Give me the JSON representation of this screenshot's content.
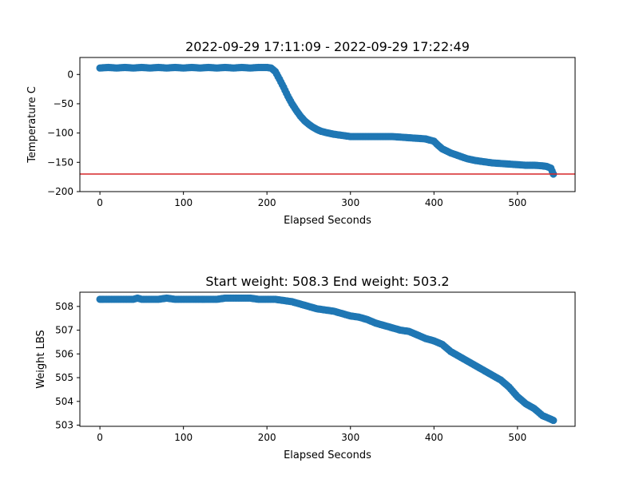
{
  "chart_data": [
    {
      "type": "scatter",
      "title": "2022-09-29 17:11:09 - 2022-09-29 17:22:49",
      "xlabel": "Elapsed Seconds",
      "ylabel": "Temperature C",
      "xlim": [
        -24,
        569
      ],
      "ylim": [
        -200,
        29
      ],
      "xticks": [
        0,
        100,
        200,
        300,
        400,
        500
      ],
      "yticks": [
        0,
        -50,
        -100,
        -150,
        -200
      ],
      "xtick_labels": [
        "0",
        "100",
        "200",
        "300",
        "400",
        "500"
      ],
      "ytick_labels": [
        "0",
        "−50",
        "−100",
        "−150",
        "−200"
      ],
      "grid": false,
      "marker_color": "#1f77b4",
      "reference_line": {
        "y": -170,
        "color": "#d62728"
      },
      "series": [
        {
          "x": [
            0,
            10,
            20,
            30,
            40,
            50,
            60,
            70,
            80,
            90,
            100,
            110,
            120,
            130,
            140,
            150,
            160,
            170,
            180,
            190,
            200,
            205,
            210,
            215,
            220,
            225,
            230,
            235,
            240,
            245,
            250,
            255,
            260,
            265,
            270,
            280,
            290,
            300,
            310,
            320,
            330,
            340,
            350,
            360,
            370,
            380,
            390,
            395,
            400,
            405,
            410,
            420,
            430,
            440,
            450,
            460,
            470,
            480,
            490,
            500,
            510,
            520,
            530,
            535,
            540,
            543
          ],
          "y": [
            11,
            12,
            11,
            12,
            11,
            12,
            11,
            12,
            11,
            12,
            11,
            12,
            11,
            12,
            11,
            12,
            11,
            12,
            11,
            12,
            12,
            11,
            5,
            -8,
            -22,
            -37,
            -50,
            -61,
            -71,
            -79,
            -85,
            -90,
            -94,
            -97,
            -99,
            -102,
            -104,
            -106,
            -106,
            -106,
            -106,
            -106,
            -106,
            -107,
            -108,
            -109,
            -110,
            -112,
            -114,
            -121,
            -127,
            -134,
            -139,
            -144,
            -147,
            -149,
            -151,
            -152,
            -153,
            -154,
            -155,
            -155,
            -156,
            -157,
            -160,
            -170
          ]
        }
      ]
    },
    {
      "type": "scatter",
      "title": "Start weight: 508.3 End weight: 503.2",
      "xlabel": "Elapsed Seconds",
      "ylabel": "Weight LBS",
      "xlim": [
        -24,
        569
      ],
      "ylim": [
        502.95,
        508.6
      ],
      "xticks": [
        0,
        100,
        200,
        300,
        400,
        500
      ],
      "yticks": [
        503,
        504,
        505,
        506,
        507,
        508
      ],
      "xtick_labels": [
        "0",
        "100",
        "200",
        "300",
        "400",
        "500"
      ],
      "ytick_labels": [
        "503",
        "504",
        "505",
        "506",
        "507",
        "508"
      ],
      "grid": false,
      "marker_color": "#1f77b4",
      "series": [
        {
          "x": [
            0,
            10,
            20,
            30,
            40,
            45,
            50,
            60,
            70,
            80,
            90,
            100,
            110,
            120,
            130,
            140,
            150,
            160,
            170,
            180,
            190,
            200,
            210,
            220,
            230,
            240,
            250,
            260,
            270,
            280,
            290,
            300,
            310,
            320,
            330,
            340,
            350,
            360,
            370,
            380,
            390,
            400,
            410,
            420,
            430,
            440,
            450,
            460,
            470,
            480,
            490,
            500,
            510,
            520,
            530,
            540,
            543
          ],
          "y": [
            508.3,
            508.3,
            508.3,
            508.3,
            508.3,
            508.35,
            508.3,
            508.3,
            508.3,
            508.35,
            508.3,
            508.3,
            508.3,
            508.3,
            508.3,
            508.3,
            508.35,
            508.35,
            508.35,
            508.35,
            508.3,
            508.3,
            508.3,
            508.25,
            508.2,
            508.1,
            508.0,
            507.9,
            507.85,
            507.8,
            507.7,
            507.6,
            507.55,
            507.45,
            507.3,
            507.2,
            507.1,
            507.0,
            506.95,
            506.8,
            506.65,
            506.55,
            506.4,
            506.1,
            505.9,
            505.7,
            505.5,
            505.3,
            505.1,
            504.9,
            504.6,
            504.2,
            503.9,
            503.7,
            503.4,
            503.25,
            503.2
          ]
        }
      ]
    }
  ]
}
